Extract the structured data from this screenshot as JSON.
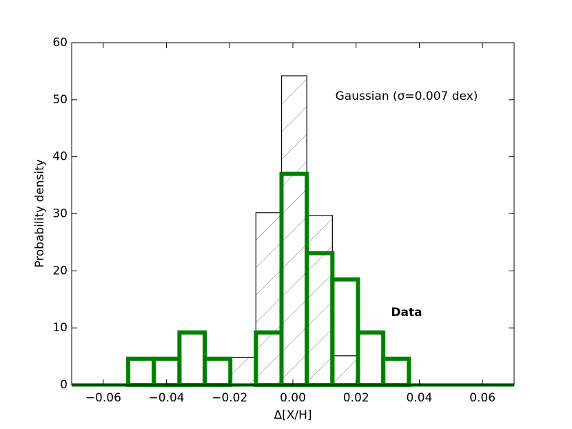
{
  "chart_data": {
    "type": "histogram",
    "xlabel": "Δ[X/H]",
    "ylabel": "Probability density",
    "xlim": [
      -0.07,
      0.07
    ],
    "ylim": [
      0,
      60
    ],
    "xticks": [
      {
        "value": -0.06,
        "label": "−0.06"
      },
      {
        "value": -0.04,
        "label": "−0.04"
      },
      {
        "value": -0.02,
        "label": "−0.02"
      },
      {
        "value": 0,
        "label": "0.00"
      },
      {
        "value": 0.02,
        "label": "0.02"
      },
      {
        "value": 0.04,
        "label": "0.04"
      },
      {
        "value": 0.06,
        "label": "0.06"
      }
    ],
    "yticks": [
      0,
      10,
      20,
      30,
      40,
      50,
      60
    ],
    "series": [
      {
        "name": "Gaussian (σ=0.007 dex)",
        "color": "#000000",
        "hatch": true,
        "bins": [
          -0.0198,
          -0.0117,
          -0.0036,
          0.0044,
          0.0125,
          0.0206
        ],
        "values": [
          4.8,
          30.2,
          54.2,
          29.7,
          5.1
        ]
      },
      {
        "name": "Data",
        "color": "#008000",
        "hatch": false,
        "bins": [
          -0.0521,
          -0.044,
          -0.0359,
          -0.0279,
          -0.0198,
          -0.0117,
          -0.0036,
          0.0044,
          0.0125,
          0.0206,
          0.0286,
          0.0367
        ],
        "values": [
          4.6,
          4.6,
          9.2,
          4.6,
          0,
          9.2,
          37,
          23.1,
          18.5,
          9.2,
          4.6
        ]
      }
    ]
  }
}
